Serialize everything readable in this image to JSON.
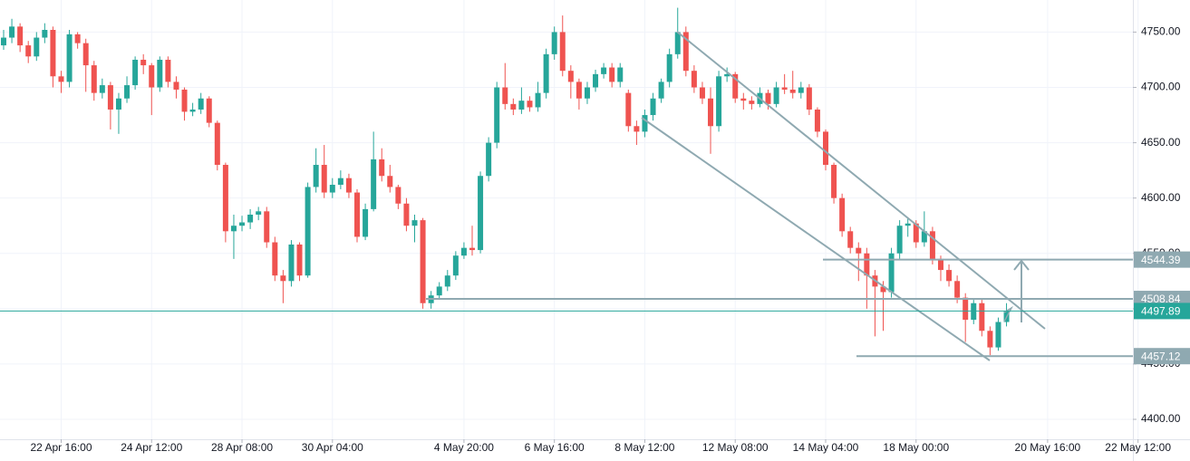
{
  "chart_data": {
    "type": "candlestick",
    "categories": [
      null,
      null,
      null,
      null,
      null,
      null,
      null,
      "22 Apr 16:00",
      null,
      null,
      null,
      null,
      null,
      null,
      null,
      null,
      null,
      null,
      "24 Apr 12:00",
      null,
      null,
      null,
      null,
      null,
      null,
      null,
      null,
      null,
      null,
      "28 Apr 08:00",
      null,
      null,
      null,
      null,
      null,
      null,
      null,
      null,
      null,
      null,
      "30 Apr 04:00",
      null,
      null,
      null,
      null,
      null,
      null,
      null,
      null,
      null,
      null,
      null,
      null,
      null,
      null,
      null,
      "4 May 20:00",
      null,
      null,
      null,
      null,
      null,
      null,
      null,
      null,
      null,
      null,
      "6 May 16:00",
      null,
      null,
      null,
      null,
      null,
      null,
      null,
      null,
      null,
      null,
      "8 May 12:00",
      null,
      null,
      null,
      null,
      null,
      null,
      null,
      null,
      null,
      null,
      "12 May 08:00",
      null,
      null,
      null,
      null,
      null,
      null,
      null,
      null,
      null,
      null,
      "14 May 04:00",
      null,
      null,
      null,
      null,
      null,
      null,
      null,
      null,
      null,
      null,
      "18 May 00:00",
      null,
      null,
      null,
      null,
      null,
      null,
      null,
      null,
      null,
      null,
      null,
      null,
      null,
      null,
      null,
      "20 May 16:00",
      null,
      null,
      null,
      null,
      null,
      null,
      null,
      null,
      null,
      null,
      "22 May 12:00"
    ],
    "open": [
      4738,
      4745,
      4755,
      4738,
      4728,
      4745,
      4752,
      4710,
      4705,
      4748,
      4740,
      4720,
      4695,
      4702,
      4680,
      4690,
      4702,
      4725,
      4720,
      4700,
      4725,
      4705,
      4698,
      4678,
      4680,
      4690,
      4668,
      4630,
      4570,
      4575,
      4578,
      4585,
      4588,
      4560,
      4530,
      4525,
      4558,
      4530,
      4610,
      4630,
      4605,
      4612,
      4618,
      4605,
      4565,
      4590,
      4635,
      4620,
      4610,
      4595,
      4575,
      4580,
      4505,
      4512,
      4520,
      4530,
      4548,
      4555,
      4553,
      4620,
      4650,
      4700,
      4685,
      4680,
      4688,
      4682,
      4695,
      4730,
      4750,
      4715,
      4705,
      4690,
      4700,
      4712,
      4718,
      4705,
      4695,
      4665,
      4660,
      4675,
      4690,
      4705,
      4730,
      4750,
      4715,
      4700,
      4690,
      4665,
      4710,
      4712,
      4690,
      4688,
      4685,
      4695,
      4685,
      4700,
      4698,
      4695,
      4700,
      4680,
      4660,
      4630,
      4600,
      4570,
      4555,
      4550,
      4530,
      4520,
      4515,
      4550,
      4575,
      4577,
      4560,
      4570,
      4545,
      4535,
      4525,
      4510,
      4490,
      4505,
      4480,
      4465,
      4488,
      null,
      null,
      null,
      null,
      null,
      null,
      null,
      null,
      null,
      null,
      null,
      null,
      null,
      null,
      null,
      null
    ],
    "high": [
      4752,
      4762,
      4758,
      4742,
      4750,
      4758,
      4755,
      4715,
      4752,
      4750,
      4744,
      4724,
      4708,
      4705,
      4695,
      4710,
      4728,
      4730,
      4722,
      4728,
      4728,
      4710,
      4700,
      4686,
      4695,
      4692,
      4670,
      4632,
      4585,
      4584,
      4590,
      4592,
      4592,
      4565,
      4535,
      4562,
      4560,
      4614,
      4645,
      4648,
      4618,
      4625,
      4622,
      4608,
      4595,
      4660,
      4645,
      4630,
      4612,
      4600,
      4585,
      4582,
      4516,
      4524,
      4535,
      4552,
      4560,
      4575,
      4624,
      4655,
      4705,
      4722,
      4690,
      4700,
      4692,
      4705,
      4735,
      4755,
      4765,
      4720,
      4708,
      4705,
      4716,
      4722,
      4722,
      4722,
      4698,
      4670,
      4680,
      4695,
      4708,
      4735,
      4772,
      4755,
      4720,
      4705,
      4700,
      4715,
      4718,
      4714,
      4695,
      4692,
      4700,
      4698,
      4705,
      4712,
      4715,
      4705,
      4703,
      4682,
      4662,
      4632,
      4604,
      4574,
      4560,
      4555,
      4535,
      4525,
      4555,
      4580,
      4582,
      4580,
      4588,
      4574,
      4548,
      4540,
      4530,
      4514,
      4508,
      4508,
      4484,
      4492,
      4505,
      null,
      null,
      null,
      null,
      null,
      null,
      null,
      null,
      null,
      null,
      null,
      null,
      null,
      null,
      null,
      null
    ],
    "low": [
      4734,
      4740,
      4732,
      4722,
      4724,
      4740,
      4700,
      4695,
      4700,
      4735,
      4696,
      4688,
      4690,
      4662,
      4658,
      4686,
      4698,
      4712,
      4675,
      4696,
      4700,
      4690,
      4670,
      4674,
      4676,
      4664,
      4625,
      4560,
      4545,
      4570,
      4572,
      4580,
      4555,
      4525,
      4505,
      4520,
      4525,
      4528,
      4605,
      4600,
      4600,
      4608,
      4600,
      4560,
      4562,
      4588,
      4615,
      4605,
      4590,
      4570,
      4560,
      4500,
      4500,
      4508,
      4516,
      4526,
      4545,
      4548,
      4550,
      4615,
      4645,
      4680,
      4675,
      4676,
      4678,
      4678,
      4690,
      4725,
      4710,
      4690,
      4680,
      4685,
      4696,
      4708,
      4700,
      4700,
      4660,
      4648,
      4655,
      4670,
      4686,
      4700,
      4726,
      4710,
      4695,
      4685,
      4640,
      4660,
      4705,
      4686,
      4680,
      4680,
      4682,
      4680,
      4682,
      4694,
      4690,
      4690,
      4675,
      4655,
      4625,
      4595,
      4565,
      4550,
      4525,
      4500,
      4475,
      4480,
      4510,
      4545,
      4565,
      4555,
      4556,
      4540,
      4525,
      4520,
      4505,
      4470,
      4486,
      4475,
      4458,
      4462,
      4484,
      null,
      null,
      null,
      null,
      null,
      null,
      null,
      null,
      null,
      null,
      null,
      null,
      null,
      null,
      null,
      null
    ],
    "close": [
      4745,
      4755,
      4738,
      4728,
      4745,
      4752,
      4710,
      4705,
      4748,
      4740,
      4720,
      4695,
      4702,
      4680,
      4690,
      4702,
      4725,
      4720,
      4700,
      4725,
      4705,
      4698,
      4678,
      4680,
      4690,
      4668,
      4630,
      4570,
      4575,
      4578,
      4585,
      4588,
      4560,
      4530,
      4525,
      4558,
      4530,
      4610,
      4630,
      4605,
      4612,
      4618,
      4605,
      4565,
      4590,
      4635,
      4620,
      4610,
      4595,
      4575,
      4580,
      4505,
      4512,
      4520,
      4530,
      4548,
      4555,
      4553,
      4620,
      4650,
      4700,
      4685,
      4680,
      4688,
      4682,
      4695,
      4730,
      4750,
      4715,
      4705,
      4690,
      4700,
      4712,
      4718,
      4705,
      4718,
      4665,
      4660,
      4675,
      4690,
      4705,
      4730,
      4750,
      4715,
      4700,
      4690,
      4665,
      4710,
      4712,
      4690,
      4688,
      4685,
      4695,
      4685,
      4700,
      4698,
      4695,
      4700,
      4680,
      4660,
      4630,
      4600,
      4570,
      4555,
      4550,
      4530,
      4520,
      4515,
      4550,
      4575,
      4577,
      4560,
      4570,
      4545,
      4535,
      4525,
      4510,
      4490,
      4505,
      4480,
      4465,
      4488,
      4497.89,
      null,
      null,
      null,
      null,
      null,
      null,
      null,
      null,
      null,
      null,
      null,
      null,
      null,
      null,
      null,
      null
    ],
    "up_color": "#26a69a",
    "down_color": "#ef5350",
    "ylim": [
      4382,
      4779
    ],
    "yticks": [
      {
        "value": 4400,
        "label": "4400.00"
      },
      {
        "value": 4450,
        "label": "4450.00"
      },
      {
        "value": 4500,
        "label": "4500.00"
      },
      {
        "value": 4550,
        "label": "4550.00"
      },
      {
        "value": 4600,
        "label": "4600.00"
      },
      {
        "value": 4650,
        "label": "4650.00"
      },
      {
        "value": 4700,
        "label": "4700.00"
      },
      {
        "value": 4750,
        "label": "4750.00"
      }
    ],
    "grid": true,
    "levels": [
      4544.39,
      4508.84,
      4457.12
    ],
    "level_color": "#8fa9b1",
    "last_price": 4497.89,
    "last_price_color": "#26a69a"
  }
}
